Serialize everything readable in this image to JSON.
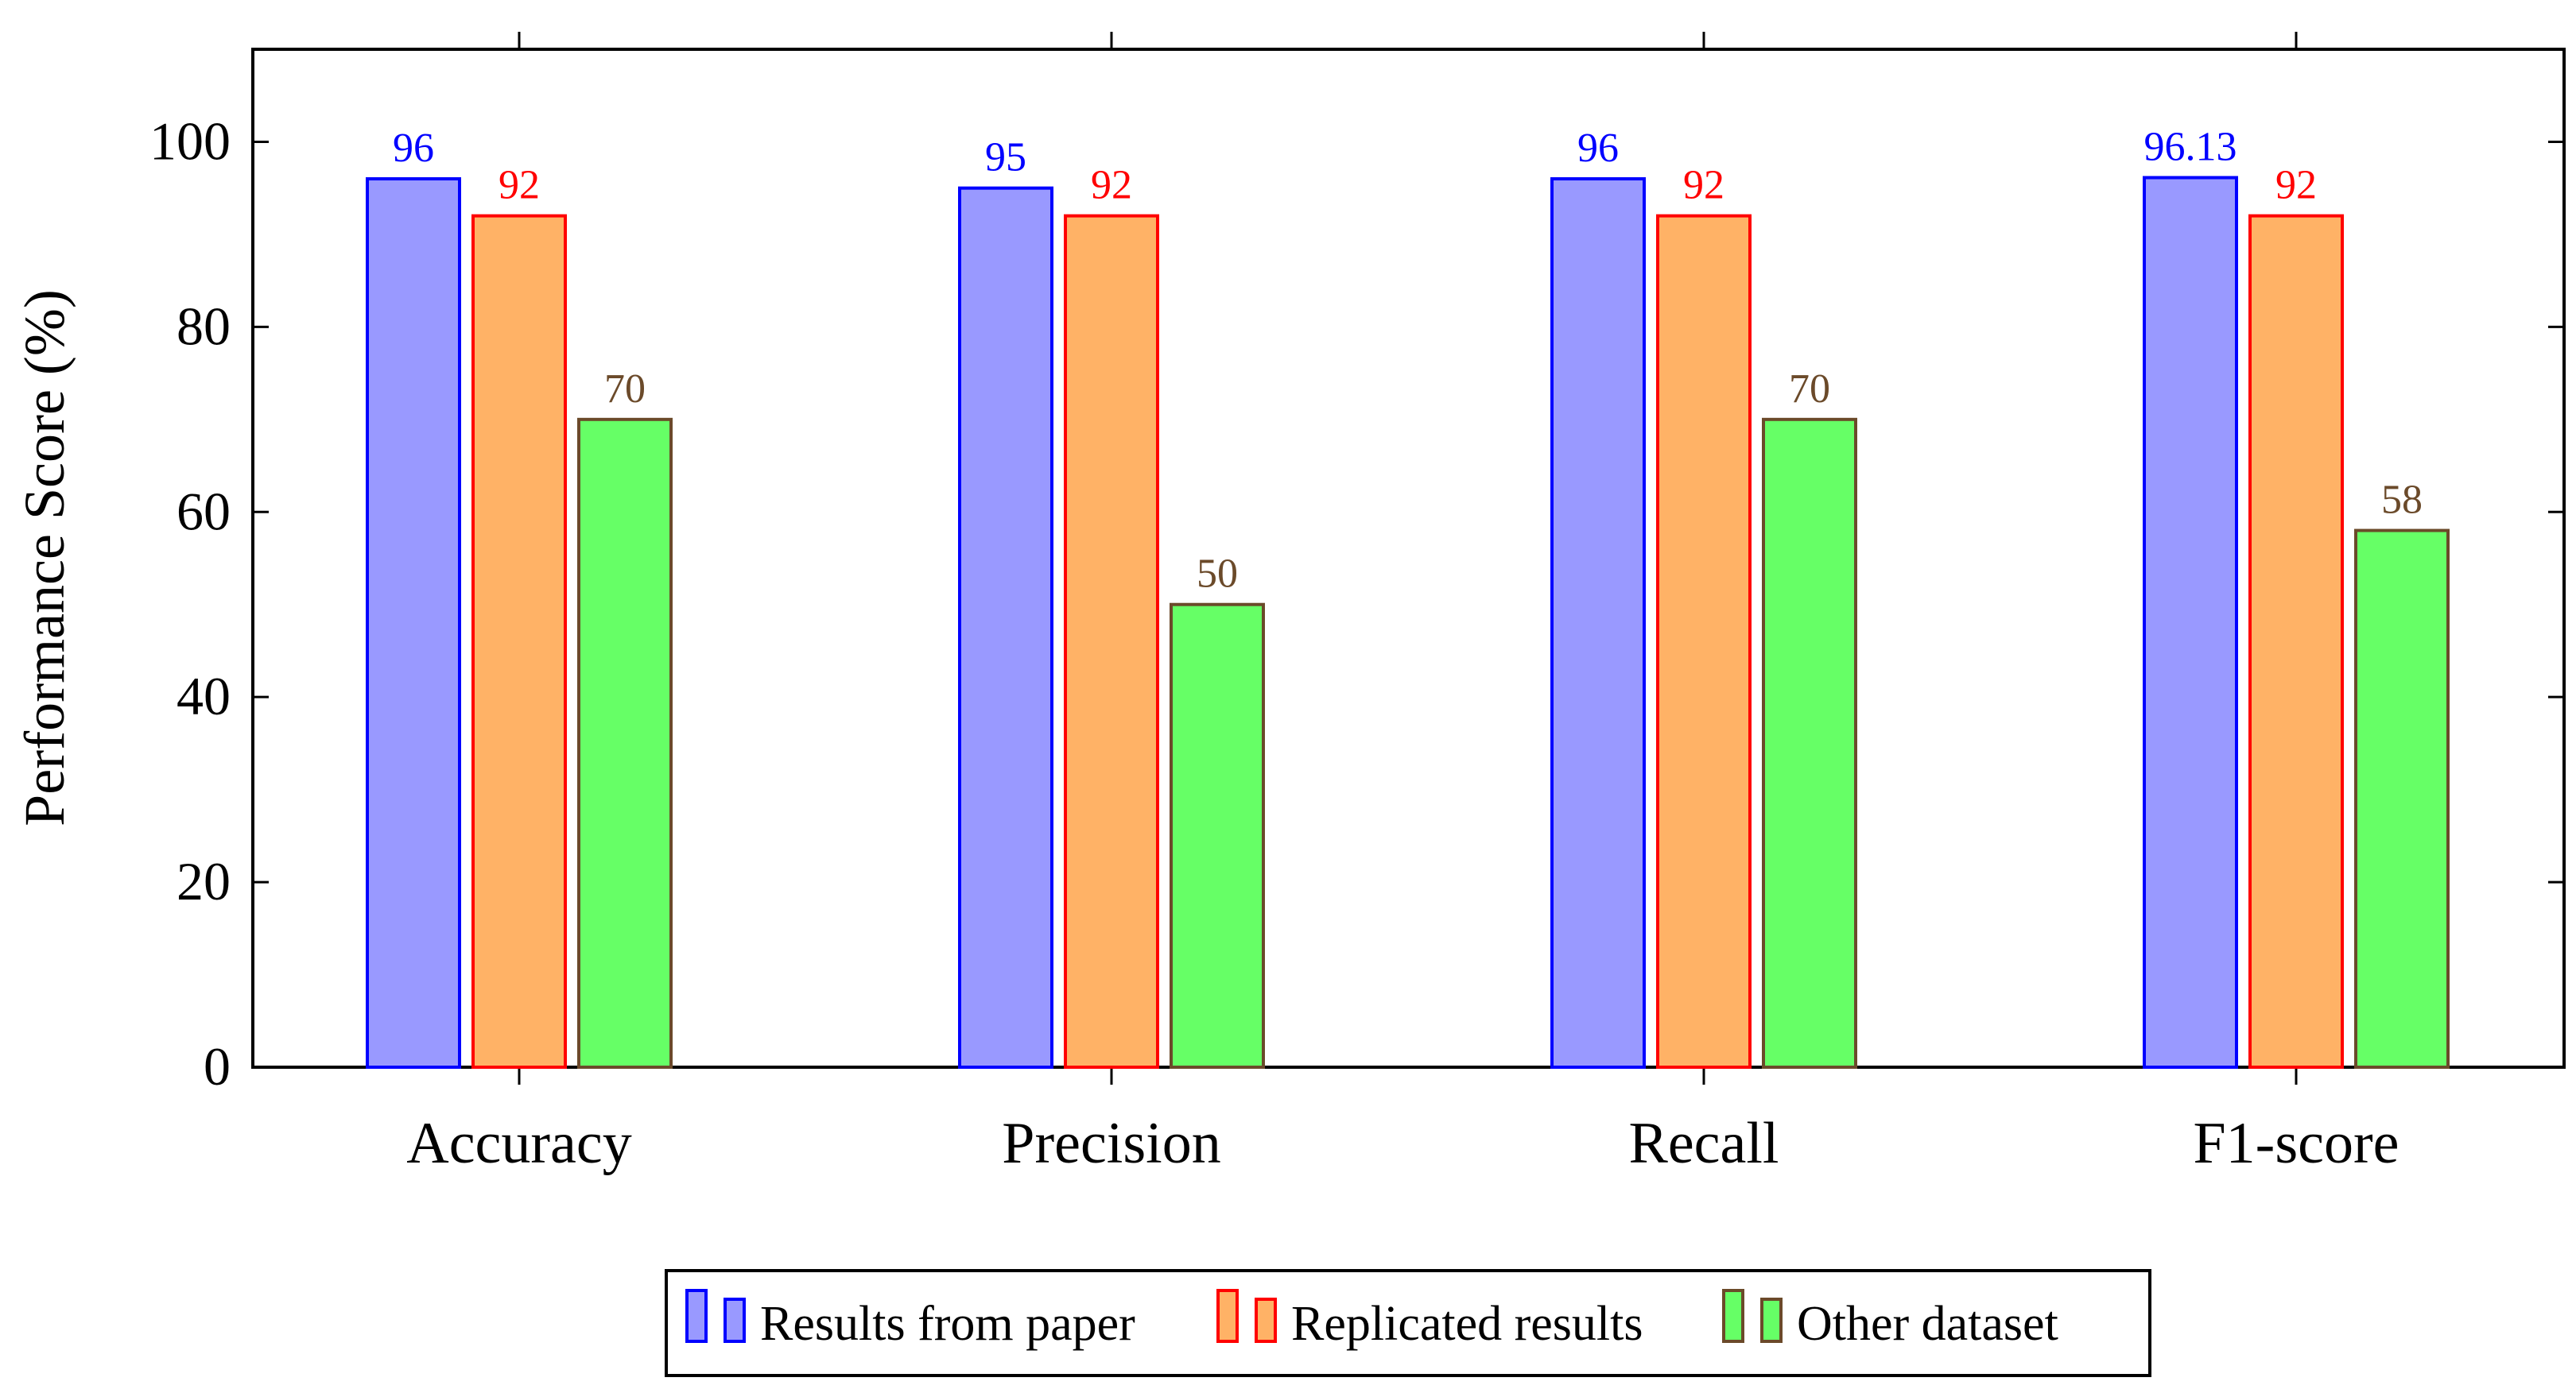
{
  "chart_data": {
    "type": "bar",
    "title": "",
    "xlabel": "",
    "ylabel": "Performance Score (%)",
    "categories": [
      "Accuracy",
      "Precision",
      "Recall",
      "F1-score"
    ],
    "series": [
      {
        "name": "Results from paper",
        "values": [
          96,
          95,
          96,
          96.13
        ],
        "labels": [
          "96",
          "95",
          "96",
          "96.13"
        ],
        "fill": "#9999ff",
        "stroke": "#0000ff",
        "label_color": "#0000ff"
      },
      {
        "name": "Replicated results",
        "values": [
          92,
          92,
          92,
          92
        ],
        "labels": [
          "92",
          "92",
          "92",
          "92"
        ],
        "fill": "#ffb266",
        "stroke": "#ff0000",
        "label_color": "#ff0000"
      },
      {
        "name": "Other dataset",
        "values": [
          70,
          50,
          70,
          58
        ],
        "labels": [
          "70",
          "50",
          "70",
          "58"
        ],
        "fill": "#66ff66",
        "stroke": "#6b4a2a",
        "label_color": "#6b4a2a"
      }
    ],
    "ylim": [
      0,
      110
    ],
    "yticks": [
      0,
      20,
      40,
      60,
      80,
      100
    ],
    "ytick_labels": [
      "0",
      "20",
      "40",
      "60",
      "80",
      "100"
    ],
    "grid": false,
    "legend_position": "bottom-center"
  }
}
